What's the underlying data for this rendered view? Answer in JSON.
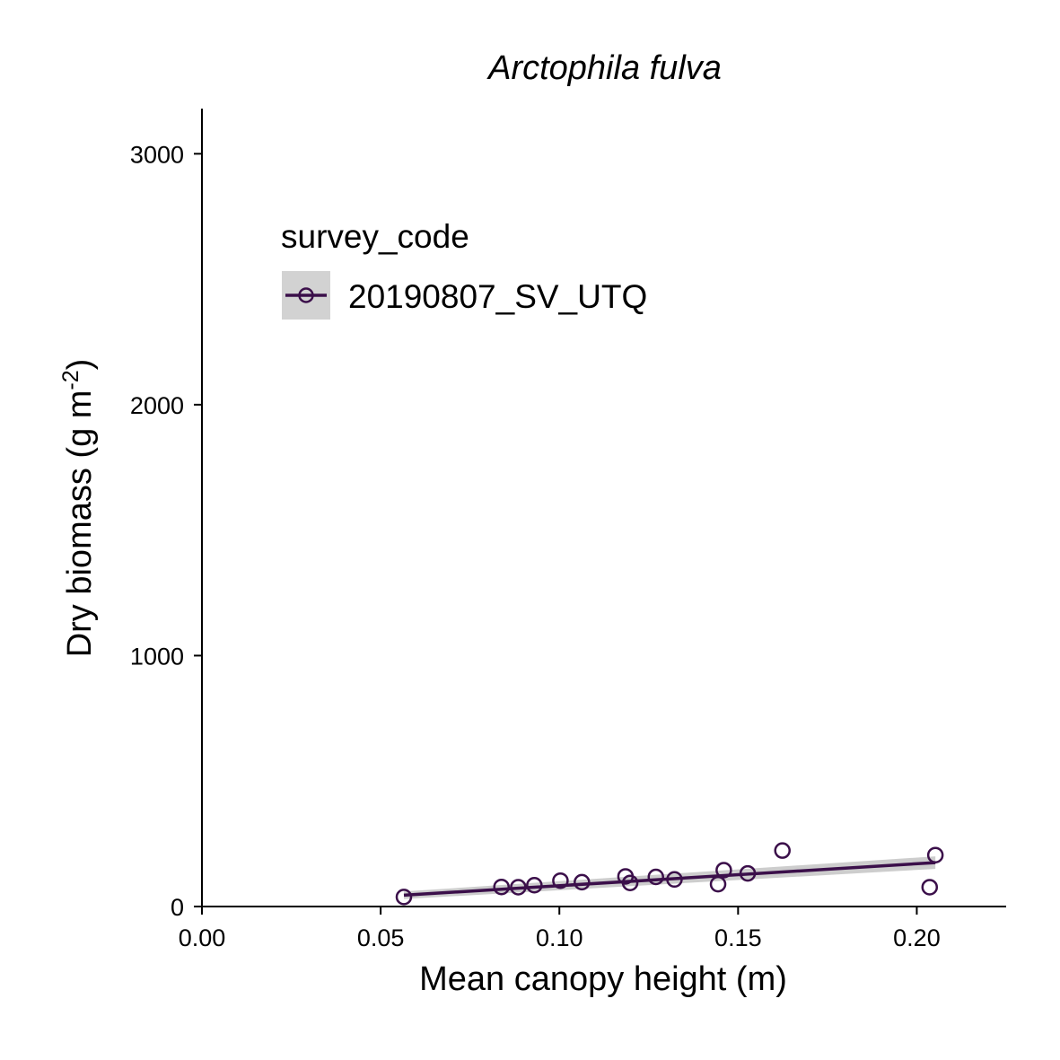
{
  "chart_data": {
    "type": "scatter",
    "title": "Arctophila fulva",
    "xlabel": "Mean canopy height (m)",
    "ylabel_main": "Dry biomass (g m",
    "ylabel_sup": "-2",
    "ylabel_end": ")",
    "xlim": [
      0,
      0.225
    ],
    "ylim": [
      0,
      3180
    ],
    "x_ticks": [
      0,
      0.05,
      0.1,
      0.15,
      0.2
    ],
    "x_tick_labels": [
      "0.00",
      "0.05",
      "0.10",
      "0.15",
      "0.20"
    ],
    "y_ticks": [
      0,
      1000,
      2000,
      3000
    ],
    "y_tick_labels": [
      "0",
      "1000",
      "2000",
      "3000"
    ],
    "grid": false,
    "legend": {
      "title": "survey_code",
      "placement": "top-left",
      "entries": [
        "20190807_SV_UTQ"
      ]
    },
    "series": [
      {
        "name": "20190807_SV_UTQ",
        "color": "#3b0f4a",
        "points": [
          {
            "x": 0.0565,
            "y": 38
          },
          {
            "x": 0.0838,
            "y": 78
          },
          {
            "x": 0.0885,
            "y": 77
          },
          {
            "x": 0.093,
            "y": 85
          },
          {
            "x": 0.1003,
            "y": 103
          },
          {
            "x": 0.1063,
            "y": 97
          },
          {
            "x": 0.1185,
            "y": 120
          },
          {
            "x": 0.1198,
            "y": 94
          },
          {
            "x": 0.127,
            "y": 118
          },
          {
            "x": 0.1322,
            "y": 108
          },
          {
            "x": 0.1444,
            "y": 89
          },
          {
            "x": 0.146,
            "y": 145
          },
          {
            "x": 0.1527,
            "y": 132
          },
          {
            "x": 0.1624,
            "y": 223
          },
          {
            "x": 0.2036,
            "y": 77
          },
          {
            "x": 0.2052,
            "y": 205
          }
        ],
        "fit": {
          "x": [
            0.0565,
            0.2052
          ],
          "y": [
            45,
            175
          ],
          "ci_lower": [
            30,
            150
          ],
          "ci_upper": [
            60,
            200
          ]
        }
      }
    ],
    "ci_color": "#c8c8c8",
    "legend_key_bg": "#d2d2d2"
  }
}
